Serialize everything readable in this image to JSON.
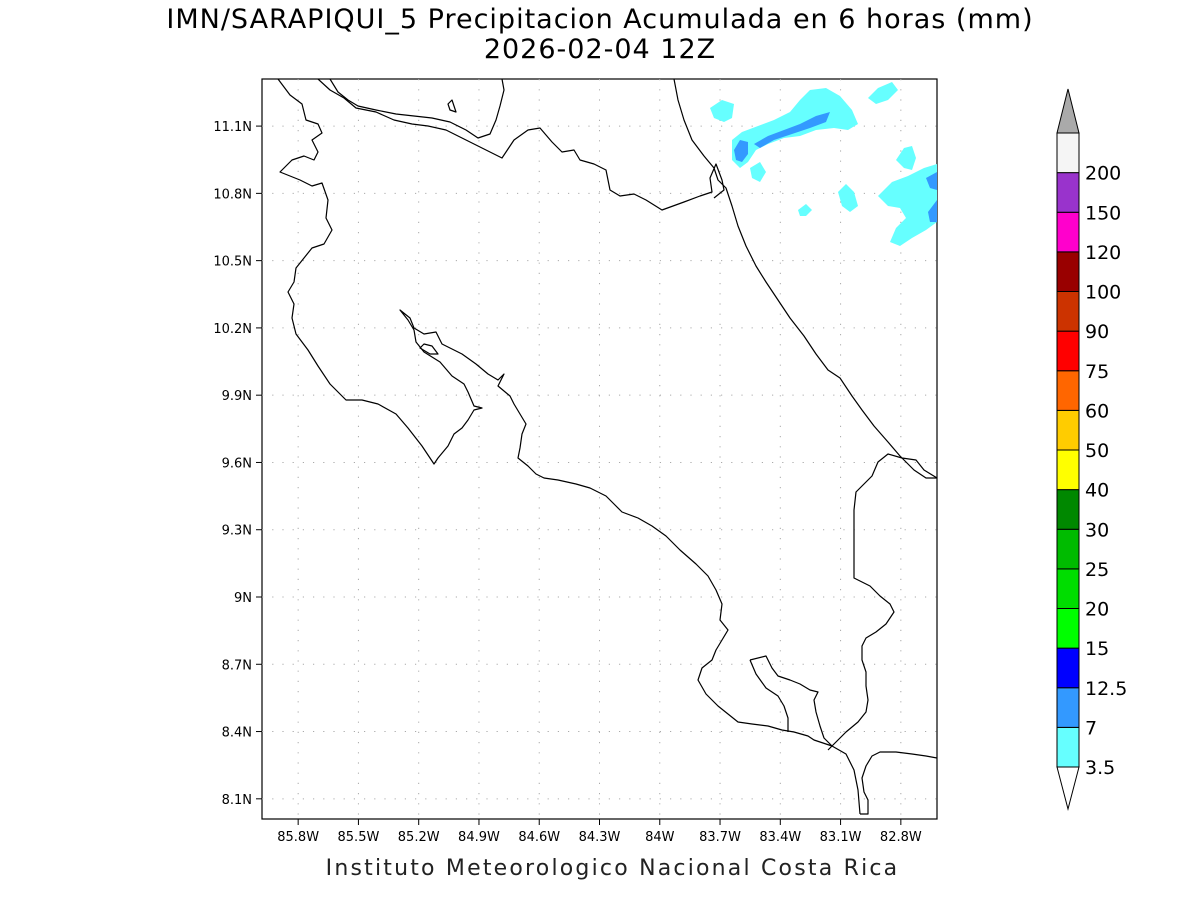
{
  "title": {
    "line1": "IMN/SARAPIQUI_5 Precipitacion Acumulada en 6 horas (mm)",
    "line2": "2026-02-04 12Z"
  },
  "footer": "Instituto Meteorologico Nacional Costa Rica",
  "map": {
    "lon_range": [
      -85.98,
      -82.62
    ],
    "lat_range": [
      8.01,
      11.31
    ],
    "grid": true,
    "lat_ticks": [
      {
        "value": 11.1,
        "label": "11.1N"
      },
      {
        "value": 10.8,
        "label": "10.8N"
      },
      {
        "value": 10.5,
        "label": "10.5N"
      },
      {
        "value": 10.2,
        "label": "10.2N"
      },
      {
        "value": 9.9,
        "label": "9.9N"
      },
      {
        "value": 9.6,
        "label": "9.6N"
      },
      {
        "value": 9.3,
        "label": "9.3N"
      },
      {
        "value": 9.0,
        "label": "9N"
      },
      {
        "value": 8.7,
        "label": "8.7N"
      },
      {
        "value": 8.4,
        "label": "8.4N"
      },
      {
        "value": 8.1,
        "label": "8.1N"
      }
    ],
    "lon_ticks": [
      {
        "value": -85.8,
        "label": "85.8W"
      },
      {
        "value": -85.5,
        "label": "85.5W"
      },
      {
        "value": -85.2,
        "label": "85.2W"
      },
      {
        "value": -84.9,
        "label": "84.9W"
      },
      {
        "value": -84.6,
        "label": "84.6W"
      },
      {
        "value": -84.3,
        "label": "84.3W"
      },
      {
        "value": -84.0,
        "label": "84W"
      },
      {
        "value": -83.7,
        "label": "83.7W"
      },
      {
        "value": -83.4,
        "label": "83.4W"
      },
      {
        "value": -83.1,
        "label": "83.1W"
      },
      {
        "value": -82.8,
        "label": "82.8W"
      }
    ]
  },
  "legend": {
    "levels": [
      {
        "label": "3.5",
        "color": "#66ffff"
      },
      {
        "label": "7",
        "color": "#3399ff"
      },
      {
        "label": "12.5",
        "color": "#0000ff"
      },
      {
        "label": "15",
        "color": "#00ff00"
      },
      {
        "label": "20",
        "color": "#00dd00"
      },
      {
        "label": "25",
        "color": "#00bb00"
      },
      {
        "label": "30",
        "color": "#008800"
      },
      {
        "label": "40",
        "color": "#ffff00"
      },
      {
        "label": "50",
        "color": "#ffcc00"
      },
      {
        "label": "60",
        "color": "#ff6600"
      },
      {
        "label": "75",
        "color": "#ff0000"
      },
      {
        "label": "90",
        "color": "#cc3300"
      },
      {
        "label": "100",
        "color": "#990000"
      },
      {
        "label": "120",
        "color": "#ff00cc"
      },
      {
        "label": "150",
        "color": "#9933cc"
      },
      {
        "label": "200",
        "color": "#f5f5f5"
      }
    ],
    "under_color": "#ffffff",
    "over_color": "#aaaaaa"
  },
  "precip_areas": [
    {
      "level": "3.5",
      "color": "#66ffff",
      "region": "northeast offshore band near 10.9N-11.2N, 83.6W-83.0W"
    },
    {
      "level": "7",
      "color": "#3399ff",
      "region": "embedded cores near 83.5W 10.95N and 83.2W 11.1N"
    },
    {
      "level": "3.5",
      "color": "#66ffff",
      "region": "east edge near 82.7W 10.7N-10.9N"
    },
    {
      "level": "7",
      "color": "#3399ff",
      "region": "east edge near 82.65W 10.7N"
    }
  ]
}
